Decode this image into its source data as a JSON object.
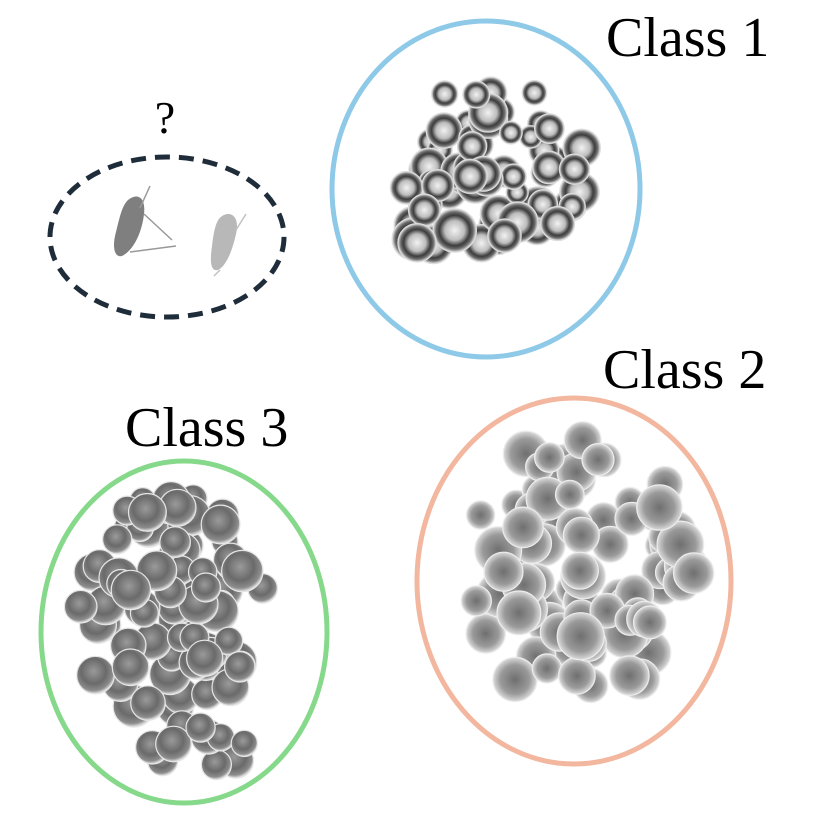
{
  "labels": {
    "class1": "Class 1",
    "class2": "Class 2",
    "class3": "Class 3",
    "unknown": "?"
  },
  "colors": {
    "class1": "#8ec9e8",
    "class2": "#f2b79e",
    "class3": "#86d98a",
    "unknown": "#1f2d3a",
    "particle_dark": "#4a4a4a",
    "particle_mid": "#8a8a8a",
    "particle_light": "#d6d6d6"
  },
  "icons": {
    "class1": "dark-ring-plankton-cluster",
    "class2": "spiky-plankton-cluster",
    "class3": "round-plankton-cluster",
    "unknown": "copepod-pair"
  }
}
